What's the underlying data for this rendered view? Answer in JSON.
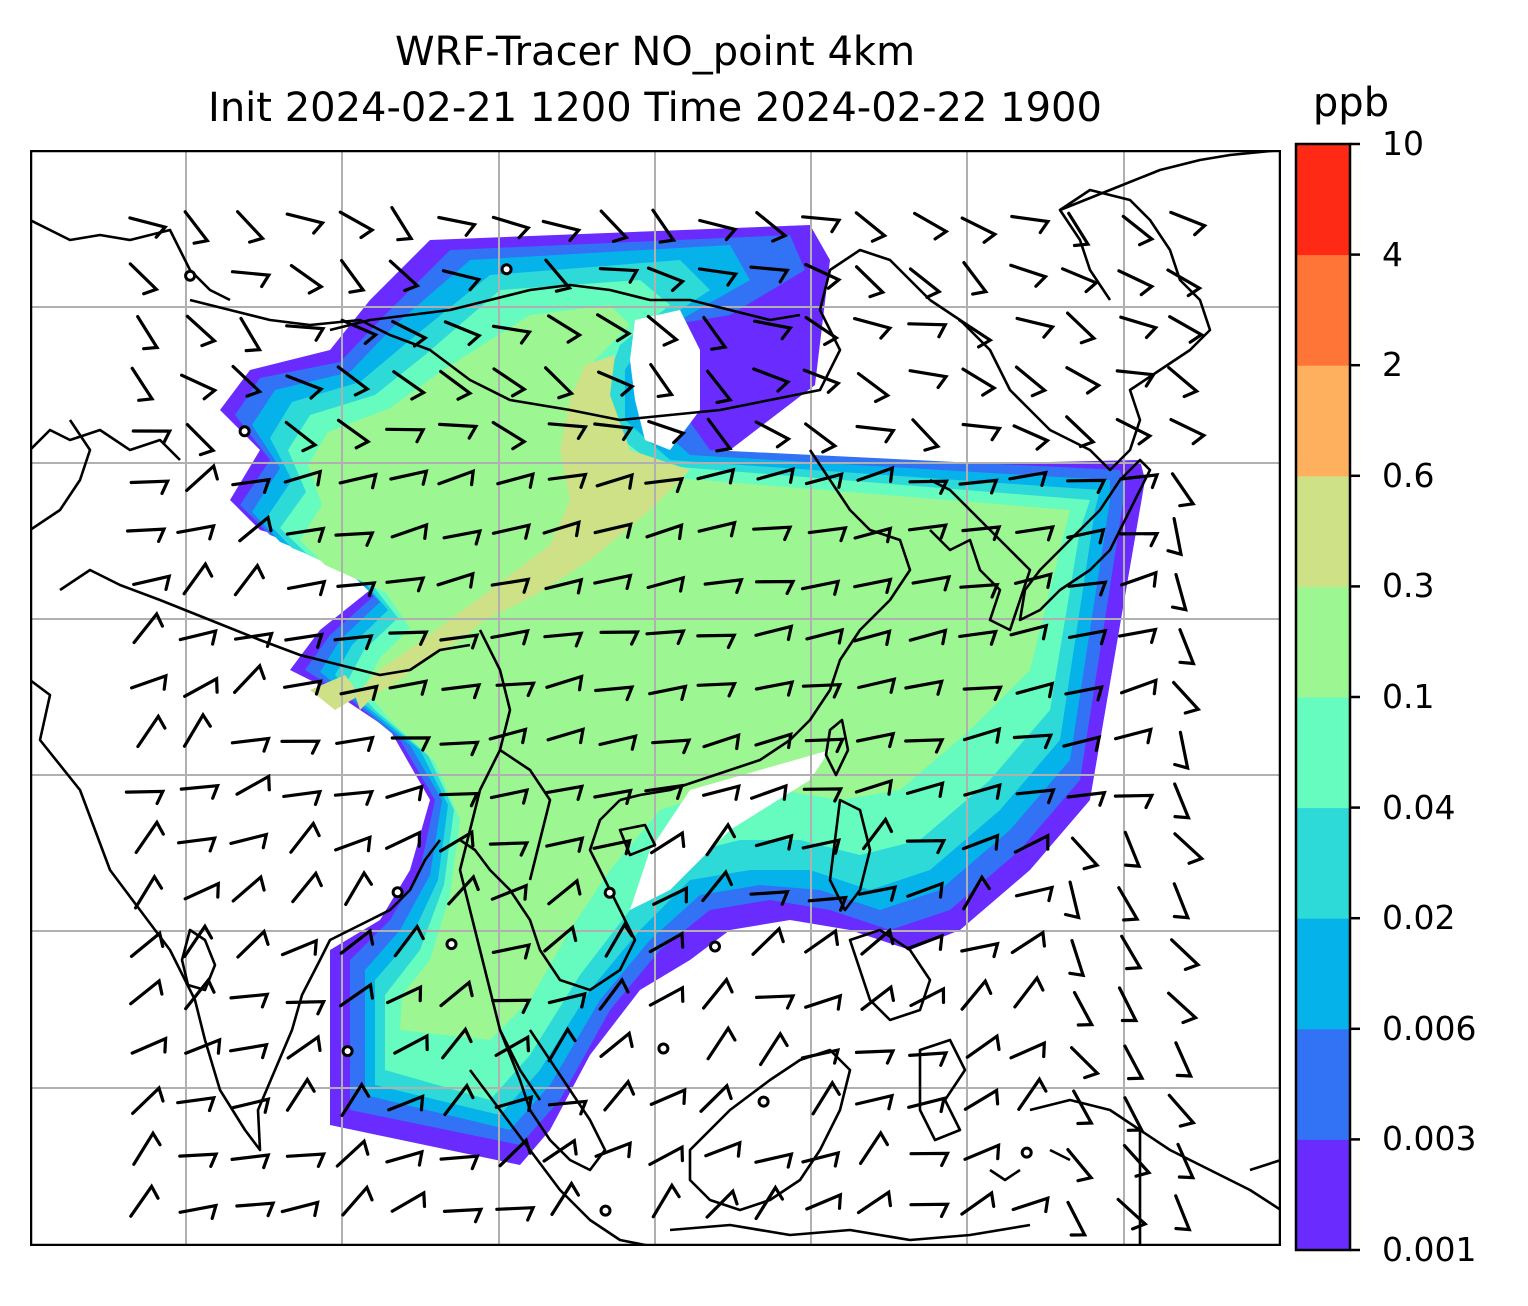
{
  "title": {
    "line1": "WRF-Tracer NO_point 4km",
    "line2": "Init 2024-02-21 1200 Time 2024-02-22 1900"
  },
  "colorbar": {
    "unit": "ppb",
    "ticks": [
      "0.001",
      "0.003",
      "0.006",
      "0.02",
      "0.04",
      "0.1",
      "0.3",
      "0.6",
      "2",
      "4",
      "10"
    ],
    "colors": [
      "#6a2bff",
      "#3272f4",
      "#06b2ea",
      "#2edad8",
      "#66fbbf",
      "#9cf792",
      "#cee186",
      "#ffb05f",
      "#ff7538",
      "#ff2a15"
    ]
  },
  "map": {
    "gridlines": true,
    "coastline_color": "#000000",
    "grid_color": "#b0b0b0",
    "wind_barbs": "black"
  }
}
